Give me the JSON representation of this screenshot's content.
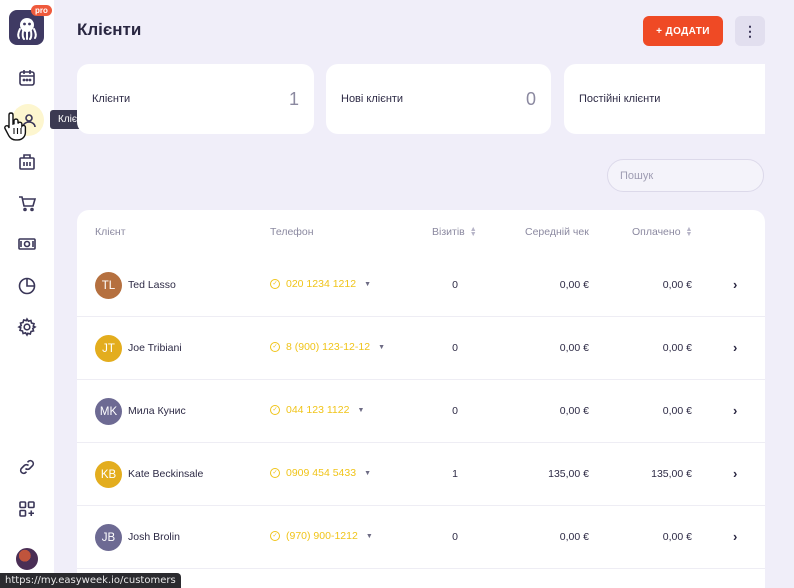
{
  "sidebar": {
    "pro_badge": "pro",
    "tooltip": "Клієнти",
    "icons": [
      "calendar-icon",
      "clients-icon",
      "services-icon",
      "cart-icon",
      "cash-icon",
      "reports-icon",
      "settings-icon",
      "link-icon",
      "apps-icon"
    ]
  },
  "header": {
    "title": "Клієнти",
    "add_label": "+ ДОДАТИ",
    "more_label": "⋮"
  },
  "stats": [
    {
      "label": "Клієнти",
      "value": "1"
    },
    {
      "label": "Нові клієнти",
      "value": "0"
    },
    {
      "label": "Постійні клієнти",
      "value": ""
    }
  ],
  "search": {
    "placeholder": "Пошук"
  },
  "table": {
    "columns": {
      "client": "Клієнт",
      "phone": "Телефон",
      "visits": "Візитів",
      "avg_check": "Середній чек",
      "paid": "Оплачено"
    },
    "rows": [
      {
        "initials": "TL",
        "name": "Ted Lasso",
        "phone": "020 1234 1212",
        "visits": "0",
        "avg": "0,00 €",
        "paid": "0,00 €",
        "color": "#b5703f"
      },
      {
        "initials": "JT",
        "name": "Joe Tribiani",
        "phone": "8 (900) 123-12-12",
        "visits": "0",
        "avg": "0,00 €",
        "paid": "0,00 €",
        "color": "#e3ad1e"
      },
      {
        "initials": "MK",
        "name": "Мила Кунис",
        "phone": "044 123 1122",
        "visits": "0",
        "avg": "0,00 €",
        "paid": "0,00 €",
        "color": "#6d6a93"
      },
      {
        "initials": "KB",
        "name": "Kate Beckinsale",
        "phone": "0909 454 5433",
        "visits": "1",
        "avg": "135,00 €",
        "paid": "135,00 €",
        "color": "#e3ad1e"
      },
      {
        "initials": "JB",
        "name": "Josh Brolin",
        "phone": "(970) 900-1212",
        "visits": "0",
        "avg": "0,00 €",
        "paid": "0,00 €",
        "color": "#6d6a93"
      }
    ]
  },
  "status_bar": {
    "url": "https://my.easyweek.io/customers"
  }
}
